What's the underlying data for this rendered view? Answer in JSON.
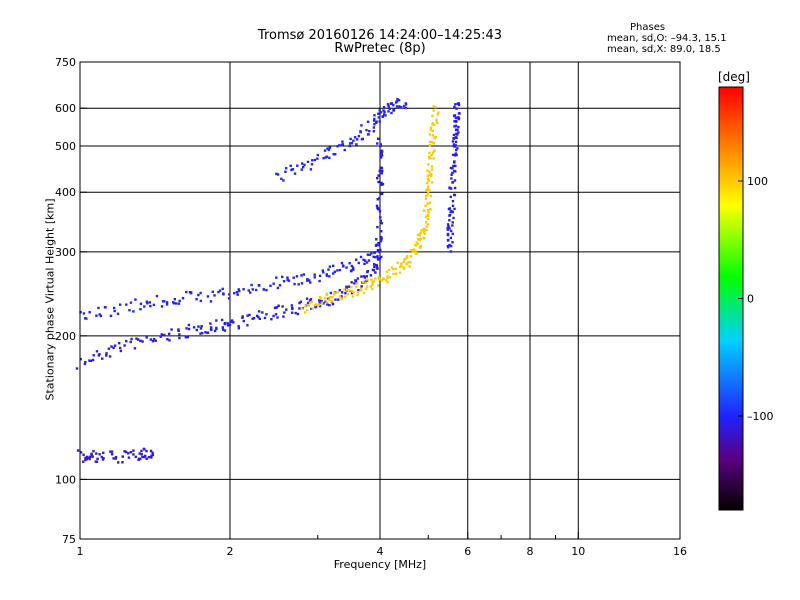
{
  "title_line1": "Tromsø 20160126 14:24:00–14:25:43",
  "title_line2": "RwPretec (8p)",
  "phases": {
    "title": "Phases",
    "o_line": "mean, sd,O: –94.3, 15.1",
    "x_line": "mean, sd,X:  89.0, 18.5"
  },
  "colorbar": {
    "units": "[deg]",
    "ticks": [
      {
        "value": 100,
        "label": "100"
      },
      {
        "value": 0,
        "label": "0"
      },
      {
        "value": -100,
        "label": "–100"
      }
    ],
    "range": [
      -180,
      180
    ]
  },
  "chart_data": {
    "type": "scatter",
    "xlabel": "Frequency [MHz]",
    "ylabel": "Stationary phase Virtual Height [km]",
    "xscale": "log",
    "yscale": "log",
    "xlim": [
      1,
      16
    ],
    "ylim": [
      75,
      750
    ],
    "xticks": [
      {
        "value": 1,
        "label": "1"
      },
      {
        "value": 2,
        "label": "2"
      },
      {
        "value": 4,
        "label": "4"
      },
      {
        "value": 6,
        "label": "6"
      },
      {
        "value": 8,
        "label": "8"
      },
      {
        "value": 10,
        "label": "10"
      },
      {
        "value": 16,
        "label": "16"
      }
    ],
    "xgrid": [
      2,
      4,
      6,
      8,
      10
    ],
    "xminor": [
      3,
      5,
      7,
      9
    ],
    "yticks": [
      {
        "value": 75,
        "label": "75"
      },
      {
        "value": 100,
        "label": "100"
      },
      {
        "value": 200,
        "label": "200"
      },
      {
        "value": 300,
        "label": "300"
      },
      {
        "value": 400,
        "label": "400"
      },
      {
        "value": 500,
        "label": "500"
      },
      {
        "value": 600,
        "label": "600"
      },
      {
        "value": 750,
        "label": "750"
      }
    ],
    "ygrid": [
      100,
      200,
      300,
      400,
      500,
      600
    ],
    "grid": true,
    "color_metric": "phase [deg]",
    "traces": [
      {
        "name": "",
        "phase": -105,
        "points": [
          [
            1.0,
            175
          ],
          [
            1.2,
            190
          ],
          [
            1.5,
            200
          ],
          [
            1.8,
            208
          ],
          [
            2.0,
            212
          ],
          [
            2.4,
            222
          ],
          [
            2.8,
            230
          ],
          [
            3.2,
            240
          ],
          [
            3.6,
            255
          ],
          [
            3.9,
            275
          ],
          [
            4.0,
            320
          ],
          [
            4.0,
            420
          ],
          [
            4.0,
            520
          ]
        ]
      },
      {
        "name": "",
        "phase": 100,
        "points": [
          [
            2.8,
            228
          ],
          [
            3.2,
            240
          ],
          [
            3.6,
            250
          ],
          [
            4.0,
            262
          ],
          [
            4.4,
            278
          ],
          [
            4.7,
            300
          ],
          [
            4.9,
            330
          ],
          [
            5.0,
            380
          ],
          [
            5.05,
            440
          ],
          [
            5.1,
            520
          ],
          [
            5.2,
            600
          ]
        ]
      },
      {
        "name": "",
        "phase": -110,
        "points": [
          [
            1.0,
            112
          ],
          [
            1.1,
            111
          ],
          [
            1.3,
            112
          ],
          [
            1.4,
            114
          ]
        ]
      },
      {
        "name": "",
        "phase": -100,
        "points": [
          [
            1.0,
            220
          ],
          [
            1.3,
            232
          ],
          [
            1.6,
            240
          ],
          [
            2.0,
            245
          ],
          [
            2.5,
            258
          ],
          [
            3.0,
            268
          ],
          [
            3.5,
            280
          ],
          [
            4.0,
            300
          ]
        ]
      },
      {
        "name": "",
        "phase": -100,
        "points": [
          [
            2.5,
            430
          ],
          [
            3.0,
            470
          ],
          [
            3.5,
            510
          ],
          [
            3.9,
            560
          ],
          [
            4.2,
            600
          ],
          [
            4.5,
            620
          ]
        ]
      },
      {
        "name": "",
        "phase": -105,
        "points": [
          [
            5.5,
            300
          ],
          [
            5.55,
            350
          ],
          [
            5.6,
            420
          ],
          [
            5.65,
            500
          ],
          [
            5.7,
            560
          ],
          [
            5.7,
            620
          ]
        ]
      }
    ]
  }
}
